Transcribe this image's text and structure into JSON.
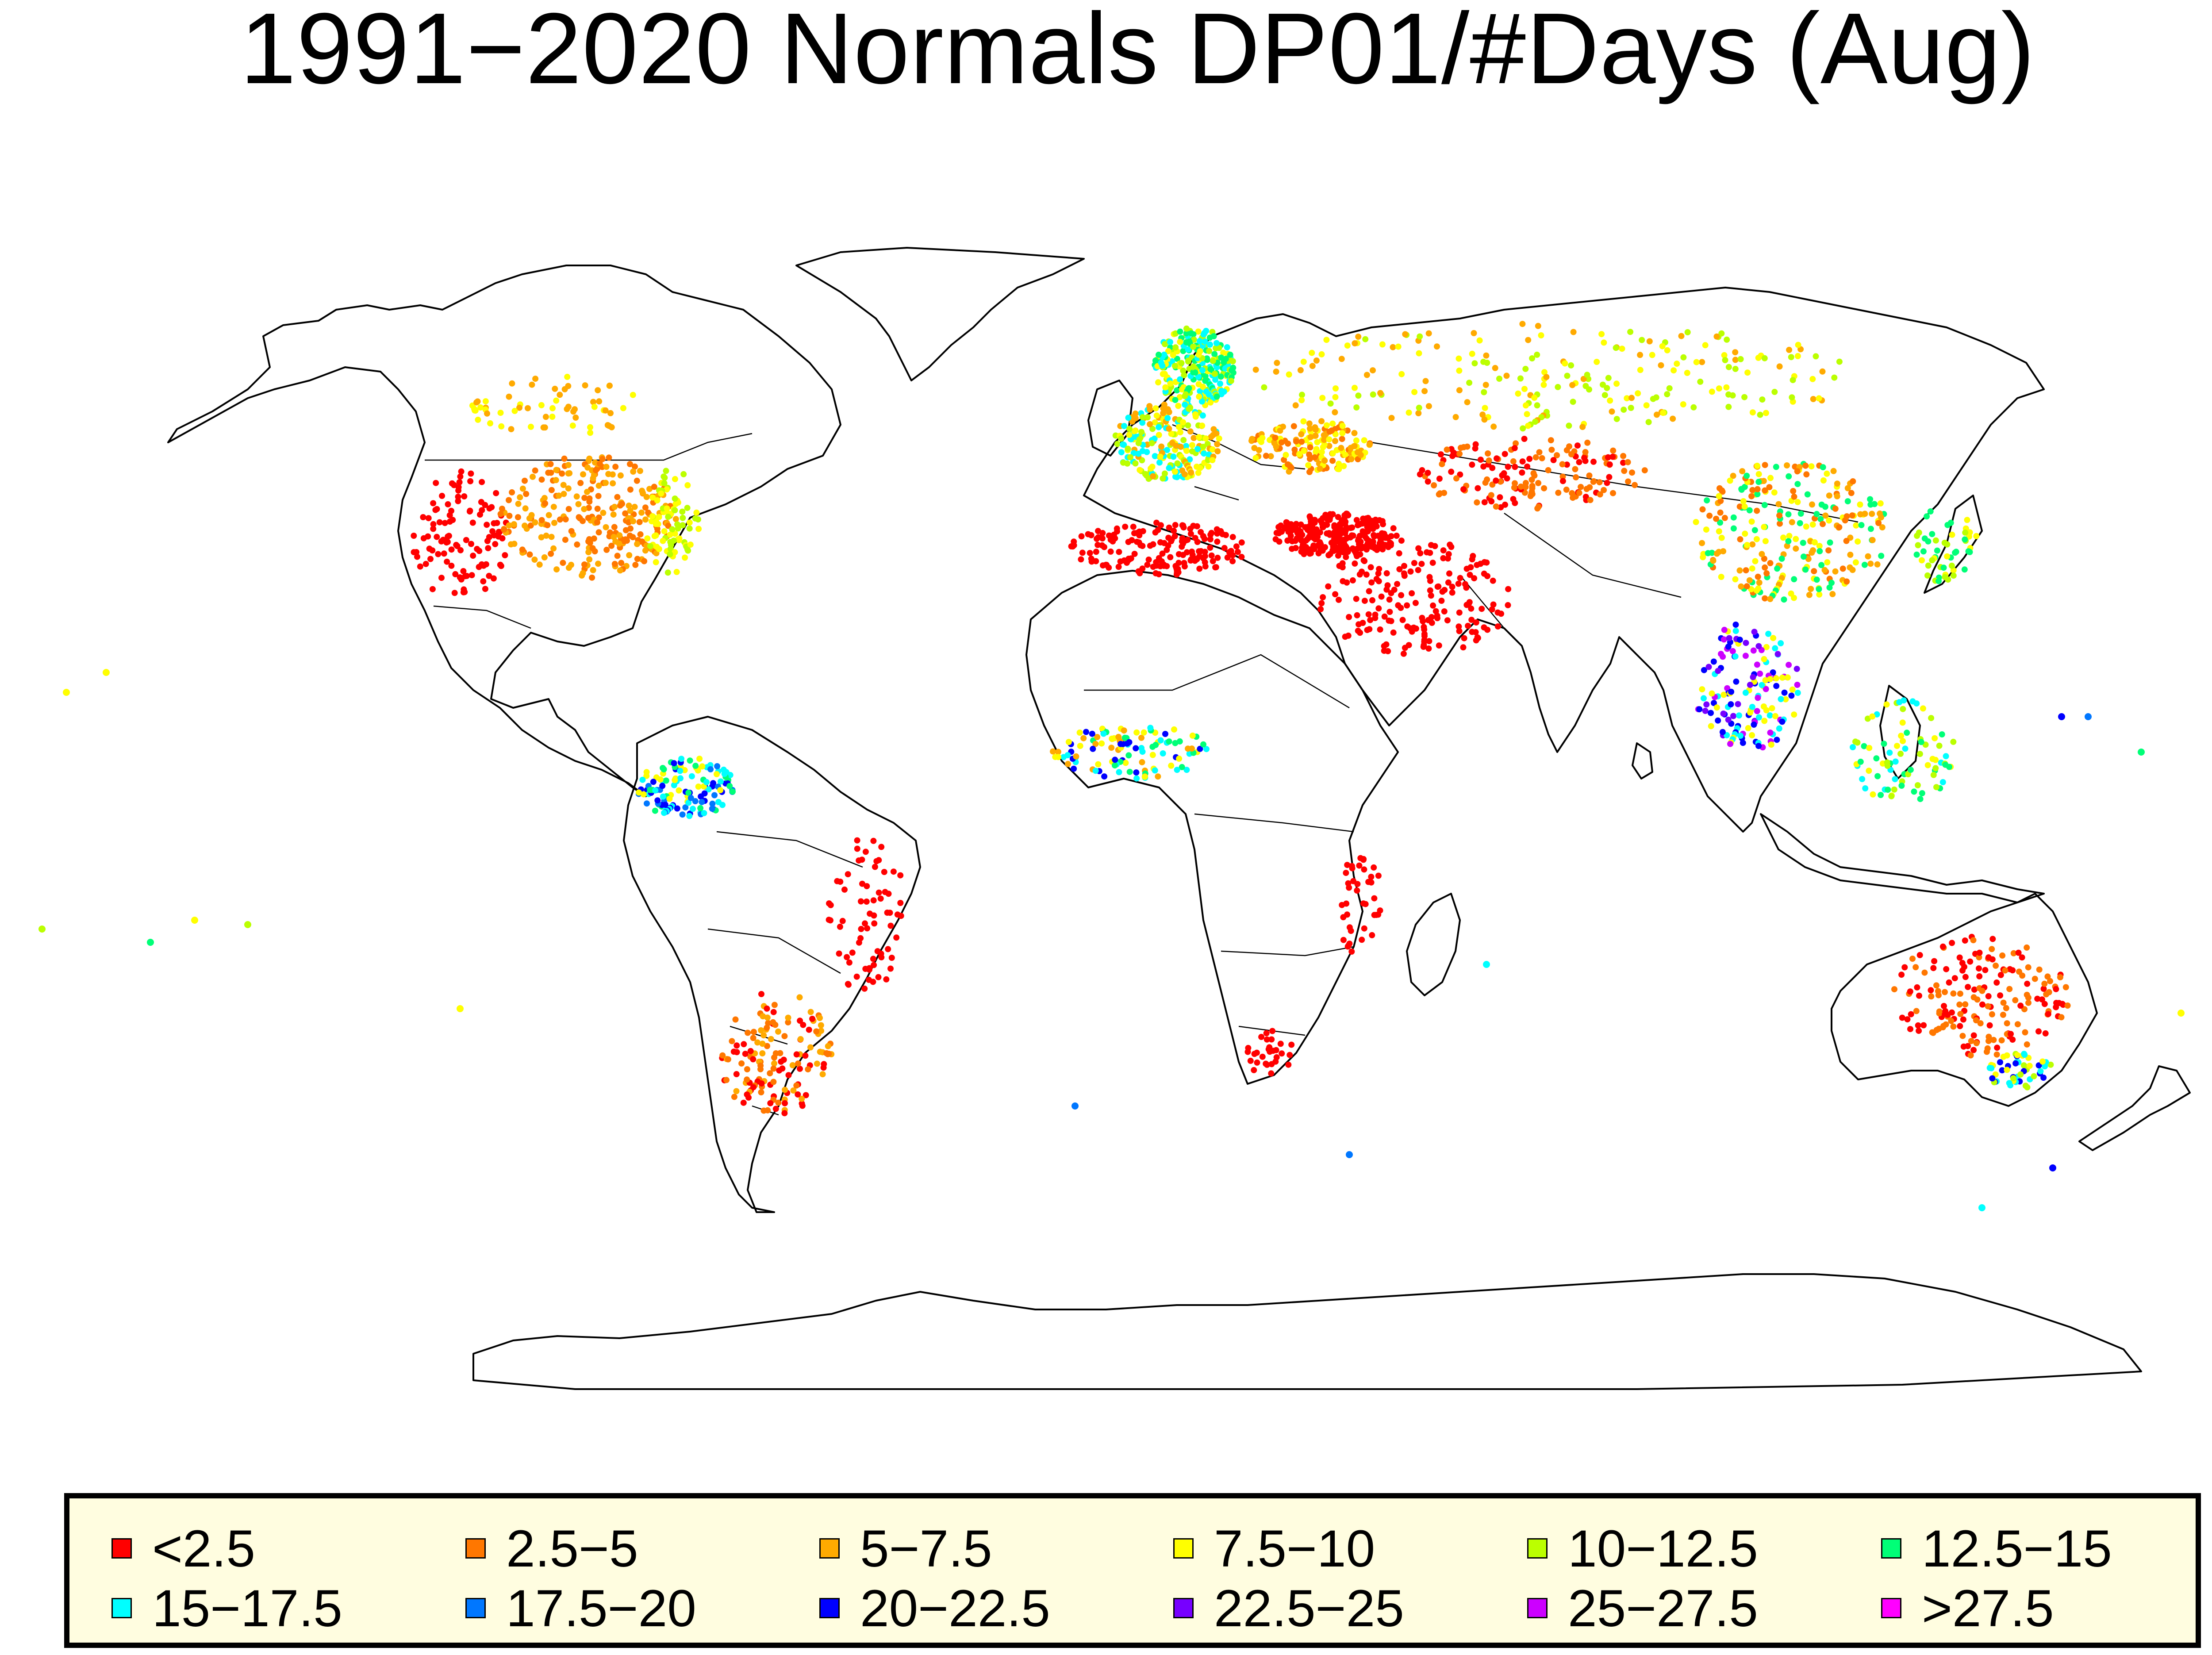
{
  "title": "1991−2020 Normals DP01/#Days (Aug)",
  "legend": [
    {
      "label": "<2.5",
      "color": "#ff0000"
    },
    {
      "label": "2.5−5",
      "color": "#ff7700"
    },
    {
      "label": "5−7.5",
      "color": "#ffaa00"
    },
    {
      "label": "7.5−10",
      "color": "#ffff00"
    },
    {
      "label": "10−12.5",
      "color": "#bbff00"
    },
    {
      "label": "12.5−15",
      "color": "#00ff77"
    },
    {
      "label": "15−17.5",
      "color": "#00ffff"
    },
    {
      "label": "17.5−20",
      "color": "#0077ff"
    },
    {
      "label": "20−22.5",
      "color": "#0000ff"
    },
    {
      "label": "22.5−25",
      "color": "#7700ff"
    },
    {
      "label": "25−27.5",
      "color": "#cc00ff"
    },
    {
      "label": ">27.5",
      "color": "#ff00ff"
    }
  ]
}
